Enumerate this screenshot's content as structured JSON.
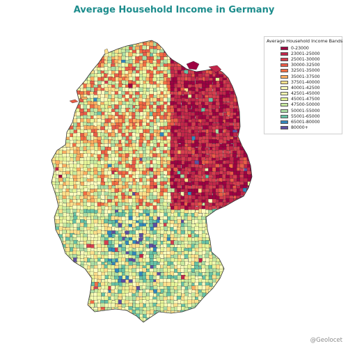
{
  "title": "Average Household Income in Germany",
  "title_color": "#1c8c8c",
  "legend": {
    "title": "Average Household Income Bands",
    "bands": [
      {
        "label": "0-23000",
        "color": "#9e0142"
      },
      {
        "label": "23001-25000",
        "color": "#c1264a"
      },
      {
        "label": "25001-30000",
        "color": "#d53e4f"
      },
      {
        "label": "30000-32500",
        "color": "#e95c47"
      },
      {
        "label": "32501-35000",
        "color": "#f46d43"
      },
      {
        "label": "35001-37500",
        "color": "#fdae61"
      },
      {
        "label": "37501-40000",
        "color": "#fee08b"
      },
      {
        "label": "40001-42500",
        "color": "#ffffbf"
      },
      {
        "label": "42501-45000",
        "color": "#f3fab0"
      },
      {
        "label": "45001-47500",
        "color": "#e6f598"
      },
      {
        "label": "47500-50000",
        "color": "#c7e9a0"
      },
      {
        "label": "50001-55000",
        "color": "#abdda4"
      },
      {
        "label": "55001-65000",
        "color": "#66c2a5"
      },
      {
        "label": "65001-80000",
        "color": "#3288bd"
      },
      {
        "label": "80000+",
        "color": "#5e4fa2"
      }
    ]
  },
  "credit": "@Geolocet"
}
